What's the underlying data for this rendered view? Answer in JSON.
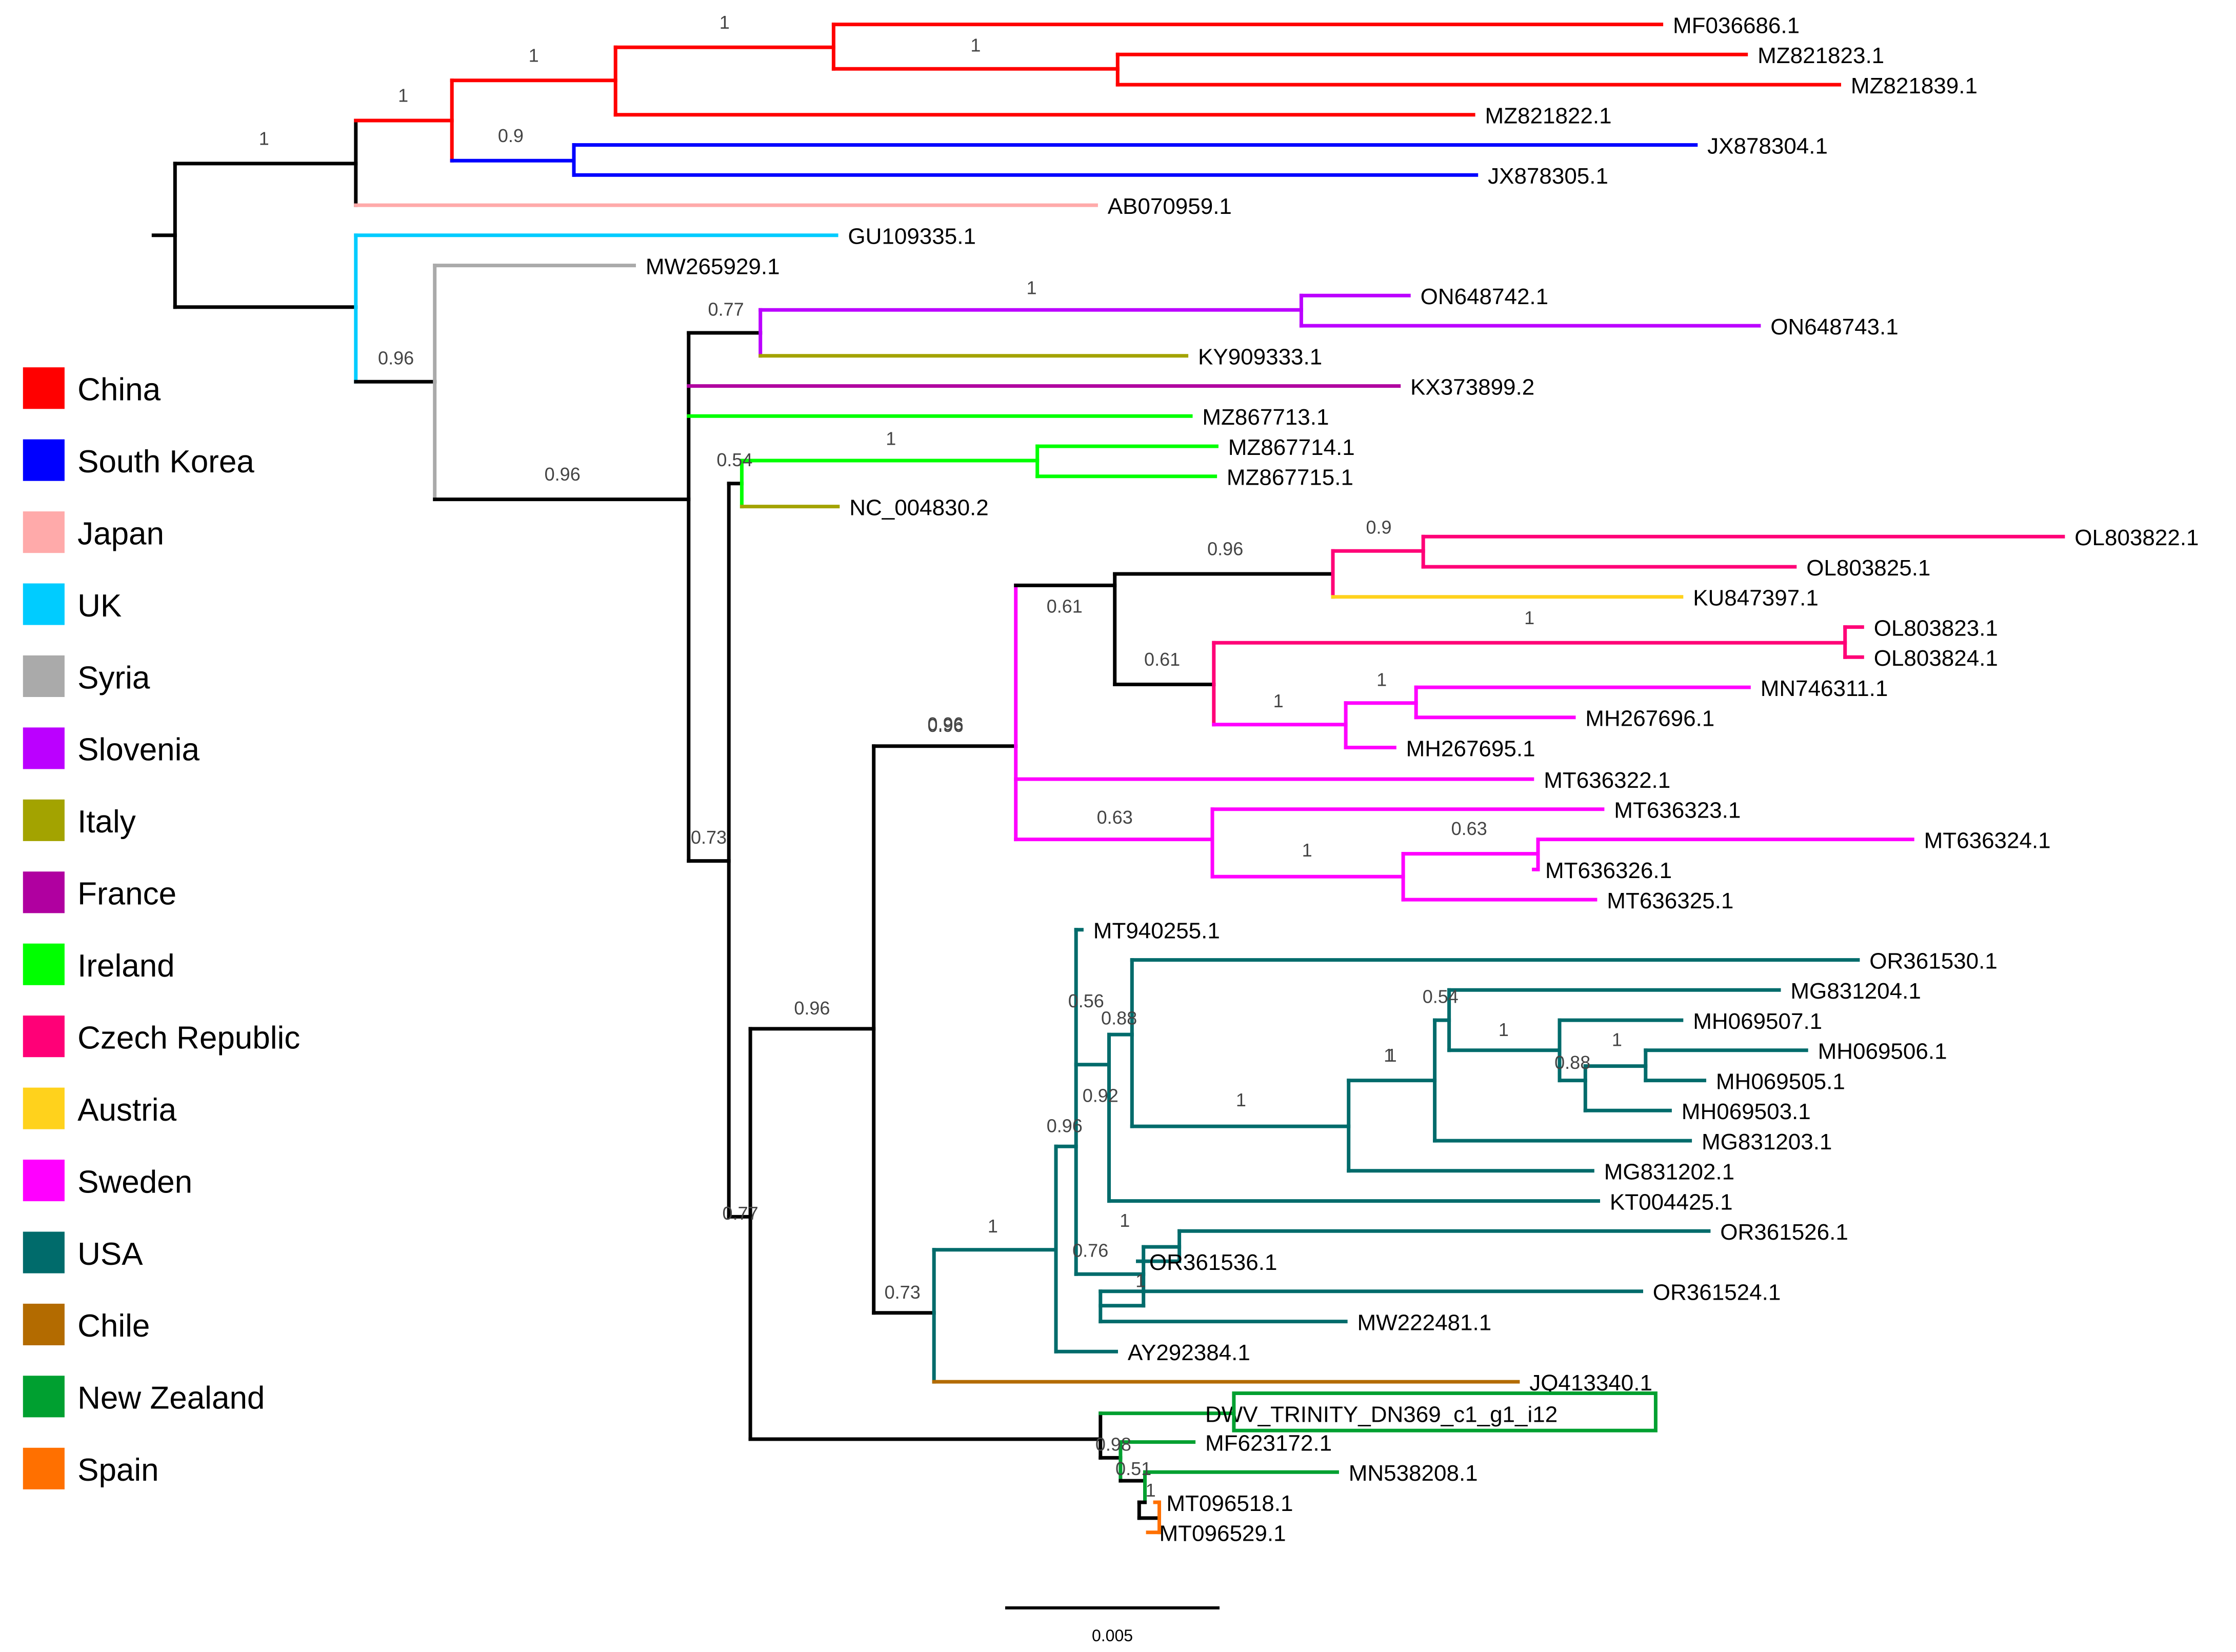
{
  "legend": [
    {
      "country": "China",
      "color": "#ff0000"
    },
    {
      "country": "South Korea",
      "color": "#0000ff"
    },
    {
      "country": "Japan",
      "color": "#ffaaaa"
    },
    {
      "country": "UK",
      "color": "#00ccff"
    },
    {
      "country": "Syria",
      "color": "#aaaaaa"
    },
    {
      "country": "Slovenia",
      "color": "#bb00ff"
    },
    {
      "country": "Italy",
      "color": "#a3a300"
    },
    {
      "country": "France",
      "color": "#b000a0"
    },
    {
      "country": "Ireland",
      "color": "#00ff00"
    },
    {
      "country": "Czech Republic",
      "color": "#ff0077"
    },
    {
      "country": "Austria",
      "color": "#ffd21c"
    },
    {
      "country": "Sweden",
      "color": "#ff00ff"
    },
    {
      "country": "USA",
      "color": "#006b6b"
    },
    {
      "country": "Chile",
      "color": "#b36b00"
    },
    {
      "country": "New Zealand",
      "color": "#00a030"
    },
    {
      "country": "Spain",
      "color": "#ff7000"
    }
  ],
  "tips": [
    "MF036686.1",
    "MZ821823.1",
    "MZ821839.1",
    "MZ821822.1",
    "JX878304.1",
    "JX878305.1",
    "AB070959.1",
    "GU109335.1",
    "MW265929.1",
    "ON648742.1",
    "ON648743.1",
    "KY909333.1",
    "KX373899.2",
    "MZ867713.1",
    "MZ867714.1",
    "MZ867715.1",
    "NC_004830.2",
    "OL803822.1",
    "OL803825.1",
    "KU847397.1",
    "OL803823.1",
    "OL803824.1",
    "MN746311.1",
    "MH267696.1",
    "MH267695.1",
    "MT636322.1",
    "MT636323.1",
    "MT636324.1",
    "MT636326.1",
    "MT636325.1",
    "MT940255.1",
    "OR361530.1",
    "MG831204.1",
    "MH069507.1",
    "MH069506.1",
    "MH069505.1",
    "MH069503.1",
    "MG831203.1",
    "MG831202.1",
    "KT004425.1",
    "OR361526.1",
    "OR361536.1",
    "OR361524.1",
    "MW222481.1",
    "AY292384.1",
    "JQ413340.1",
    "DWV_TRINITY_DN369_c1_g1_i12",
    "MF623172.1",
    "MN538208.1",
    "MT096518.1",
    "MT096529.1"
  ],
  "support_values": [
    "1",
    "1",
    "1",
    "1",
    "0.9",
    "1",
    "0.96",
    "0.96",
    "0.77",
    "1",
    "0.54",
    "1",
    "0.73",
    "0.96",
    "0.96",
    "0.61",
    "0.96",
    "0.9",
    "0.61",
    "1",
    "1",
    "1",
    "0.63",
    "1",
    "0.63",
    "0.77",
    "0.96",
    "0.73",
    "1",
    "0.96",
    "0.56",
    "0.88",
    "0.92",
    "1",
    "1",
    "0.54",
    "1",
    "0.88",
    "1",
    "0.76",
    "1",
    "1",
    "1",
    "0.98",
    "0.51",
    "1"
  ],
  "highlighted_tip": "DWV_TRINITY_DN369_c1_g1_i12",
  "scale_bar": {
    "label": "0.005"
  }
}
